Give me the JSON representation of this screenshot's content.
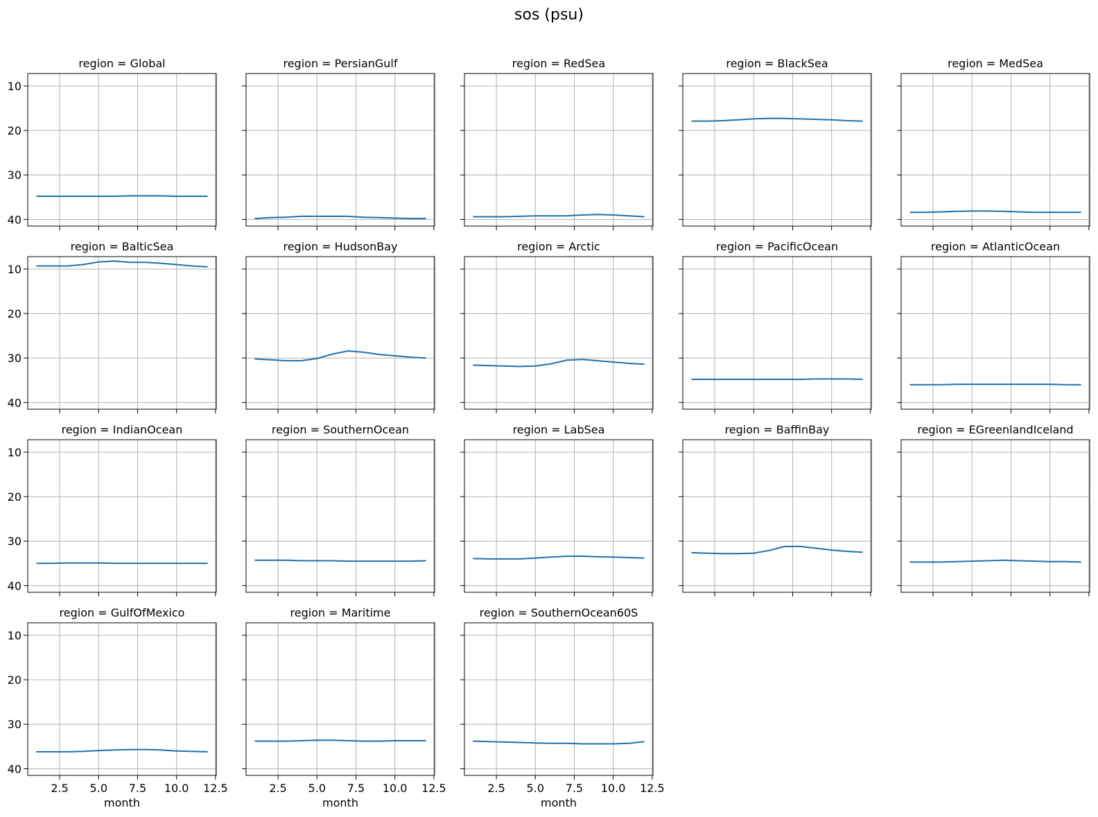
{
  "figure_title": "sos (psu)",
  "colors": {
    "line": "#1f6fad",
    "grid": "#b0b0b0",
    "axis": "#000000"
  },
  "chart_data": {
    "type": "line",
    "title": "sos (psu)",
    "xlabel": "month",
    "ylabel": "",
    "xlim": [
      0.45,
      12.55
    ],
    "ylim": [
      41.5,
      7.2
    ],
    "y_inverted": true,
    "grid": true,
    "x_ticks": [
      2.5,
      5.0,
      7.5,
      10.0,
      12.5
    ],
    "x_tick_labels": [
      "2.5",
      "5.0",
      "7.5",
      "10.0",
      "12.5"
    ],
    "y_ticks": [
      10,
      20,
      30,
      40
    ],
    "y_tick_labels": [
      "10",
      "20",
      "30",
      "40"
    ],
    "x": [
      1,
      2,
      3,
      4,
      5,
      6,
      7,
      8,
      9,
      10,
      11,
      12
    ],
    "panels": [
      {
        "label": "region = Global",
        "values": [
          34.8,
          34.8,
          34.8,
          34.8,
          34.8,
          34.8,
          34.7,
          34.7,
          34.7,
          34.8,
          34.8,
          34.8
        ]
      },
      {
        "label": "region = PersianGulf",
        "values": [
          39.8,
          39.6,
          39.5,
          39.3,
          39.3,
          39.3,
          39.3,
          39.5,
          39.6,
          39.7,
          39.8,
          39.8
        ]
      },
      {
        "label": "region = RedSea",
        "values": [
          39.4,
          39.4,
          39.4,
          39.3,
          39.2,
          39.2,
          39.2,
          39.0,
          38.9,
          39.0,
          39.2,
          39.4
        ]
      },
      {
        "label": "region = BlackSea",
        "values": [
          17.9,
          17.9,
          17.8,
          17.6,
          17.4,
          17.3,
          17.3,
          17.4,
          17.5,
          17.6,
          17.8,
          17.9
        ]
      },
      {
        "label": "region = MedSea",
        "values": [
          38.4,
          38.4,
          38.3,
          38.2,
          38.1,
          38.1,
          38.2,
          38.3,
          38.4,
          38.4,
          38.4,
          38.4
        ]
      },
      {
        "label": "region = BalticSea",
        "values": [
          9.3,
          9.3,
          9.3,
          9.0,
          8.4,
          8.2,
          8.5,
          8.5,
          8.7,
          9.0,
          9.3,
          9.5
        ]
      },
      {
        "label": "region = HudsonBay",
        "values": [
          30.2,
          30.4,
          30.6,
          30.6,
          30.1,
          29.1,
          28.4,
          28.7,
          29.2,
          29.5,
          29.8,
          30.0
        ]
      },
      {
        "label": "region = Arctic",
        "values": [
          31.6,
          31.7,
          31.8,
          31.9,
          31.8,
          31.3,
          30.5,
          30.3,
          30.6,
          30.9,
          31.2,
          31.4
        ]
      },
      {
        "label": "region = PacificOcean",
        "values": [
          34.8,
          34.8,
          34.8,
          34.8,
          34.8,
          34.8,
          34.8,
          34.8,
          34.7,
          34.7,
          34.7,
          34.8
        ]
      },
      {
        "label": "region = AtlanticOcean",
        "values": [
          36.0,
          36.0,
          36.0,
          35.9,
          35.9,
          35.9,
          35.9,
          35.9,
          35.9,
          35.9,
          36.0,
          36.0
        ]
      },
      {
        "label": "region = IndianOcean",
        "values": [
          35.0,
          35.0,
          34.9,
          34.9,
          34.9,
          35.0,
          35.0,
          35.0,
          35.0,
          35.0,
          35.0,
          35.0
        ]
      },
      {
        "label": "region = SouthernOcean",
        "values": [
          34.3,
          34.3,
          34.3,
          34.4,
          34.4,
          34.4,
          34.5,
          34.5,
          34.5,
          34.5,
          34.5,
          34.4
        ]
      },
      {
        "label": "region = LabSea",
        "values": [
          33.9,
          34.0,
          34.0,
          34.0,
          33.8,
          33.6,
          33.4,
          33.4,
          33.5,
          33.6,
          33.7,
          33.8
        ]
      },
      {
        "label": "region = BaffinBay",
        "values": [
          32.6,
          32.7,
          32.8,
          32.8,
          32.7,
          32.1,
          31.2,
          31.2,
          31.6,
          32.0,
          32.3,
          32.5
        ]
      },
      {
        "label": "region = EGreenlandIceland",
        "values": [
          34.7,
          34.7,
          34.7,
          34.6,
          34.5,
          34.4,
          34.3,
          34.4,
          34.5,
          34.6,
          34.6,
          34.7
        ]
      },
      {
        "label": "region = GulfOfMexico",
        "values": [
          36.2,
          36.2,
          36.2,
          36.1,
          35.9,
          35.8,
          35.7,
          35.7,
          35.8,
          36.0,
          36.1,
          36.2
        ]
      },
      {
        "label": "region = Maritime",
        "values": [
          33.8,
          33.8,
          33.8,
          33.7,
          33.6,
          33.6,
          33.7,
          33.8,
          33.8,
          33.7,
          33.7,
          33.7
        ]
      },
      {
        "label": "region = SouthernOcean60S",
        "values": [
          33.8,
          33.9,
          34.0,
          34.1,
          34.2,
          34.3,
          34.3,
          34.4,
          34.4,
          34.4,
          34.3,
          33.9
        ]
      }
    ]
  }
}
